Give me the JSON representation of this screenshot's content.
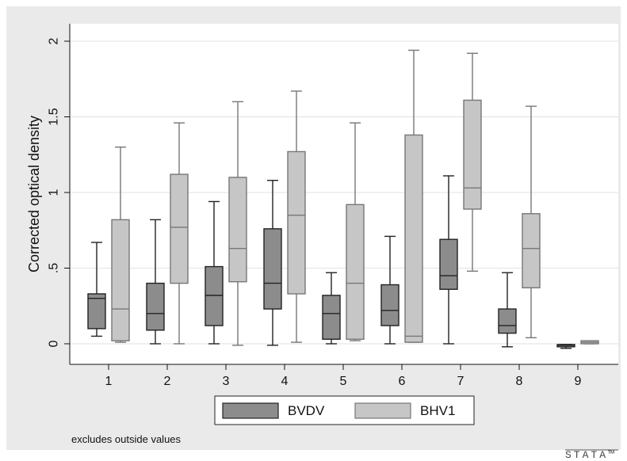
{
  "chart_data": {
    "type": "box",
    "ylabel": "Corrected optical density",
    "xlabel": "",
    "title": "",
    "ylim": [
      0,
      2
    ],
    "yticks": [
      0,
      0.5,
      1,
      1.5,
      2
    ],
    "yticklabels": [
      "0",
      ".5",
      "1",
      "1.5",
      "2"
    ],
    "categories": [
      "1",
      "2",
      "3",
      "4",
      "5",
      "6",
      "7",
      "8",
      "9"
    ],
    "grid": true,
    "legend": {
      "position": "bottom"
    },
    "note": "excludes outside values",
    "logo": "STATA™",
    "colors": {
      "plot_background": "#ffffff",
      "outer_background": "#eaeaea",
      "grid": "#e2e2e2",
      "BVDV_fill": "#8c8c8c",
      "BVDV_stroke": "#222222",
      "BHV1_fill": "#c6c6c6",
      "BHV1_stroke": "#777777"
    },
    "series": [
      {
        "name": "BVDV",
        "boxes": [
          {
            "min": 0.05,
            "q1": 0.1,
            "median": 0.3,
            "q3": 0.33,
            "max": 0.67
          },
          {
            "min": 0.0,
            "q1": 0.09,
            "median": 0.2,
            "q3": 0.4,
            "max": 0.82
          },
          {
            "min": 0.0,
            "q1": 0.12,
            "median": 0.32,
            "q3": 0.51,
            "max": 0.94
          },
          {
            "min": -0.01,
            "q1": 0.23,
            "median": 0.4,
            "q3": 0.76,
            "max": 1.08
          },
          {
            "min": 0.0,
            "q1": 0.03,
            "median": 0.2,
            "q3": 0.32,
            "max": 0.47
          },
          {
            "min": 0.0,
            "q1": 0.12,
            "median": 0.22,
            "q3": 0.39,
            "max": 0.71
          },
          {
            "min": 0.0,
            "q1": 0.36,
            "median": 0.45,
            "q3": 0.69,
            "max": 1.11
          },
          {
            "min": -0.02,
            "q1": 0.07,
            "median": 0.12,
            "q3": 0.23,
            "max": 0.47
          },
          {
            "min": -0.03,
            "q1": -0.02,
            "median": -0.01,
            "q3": -0.005,
            "max": -0.005
          }
        ]
      },
      {
        "name": "BHV1",
        "boxes": [
          {
            "min": 0.01,
            "q1": 0.02,
            "median": 0.23,
            "q3": 0.82,
            "max": 1.3
          },
          {
            "min": 0.0,
            "q1": 0.4,
            "median": 0.77,
            "q3": 1.12,
            "max": 1.46
          },
          {
            "min": -0.01,
            "q1": 0.41,
            "median": 0.63,
            "q3": 1.1,
            "max": 1.6
          },
          {
            "min": 0.01,
            "q1": 0.33,
            "median": 0.85,
            "q3": 1.27,
            "max": 1.67
          },
          {
            "min": 0.02,
            "q1": 0.03,
            "median": 0.4,
            "q3": 0.92,
            "max": 1.46
          },
          {
            "min": 0.01,
            "q1": 0.01,
            "median": 0.05,
            "q3": 1.38,
            "max": 1.94
          },
          {
            "min": 0.48,
            "q1": 0.89,
            "median": 1.03,
            "q3": 1.61,
            "max": 1.92
          },
          {
            "min": 0.04,
            "q1": 0.37,
            "median": 0.63,
            "q3": 0.86,
            "max": 1.57
          },
          {
            "min": 0.0,
            "q1": 0.0,
            "median": 0.01,
            "q3": 0.02,
            "max": 0.02
          }
        ]
      }
    ]
  }
}
